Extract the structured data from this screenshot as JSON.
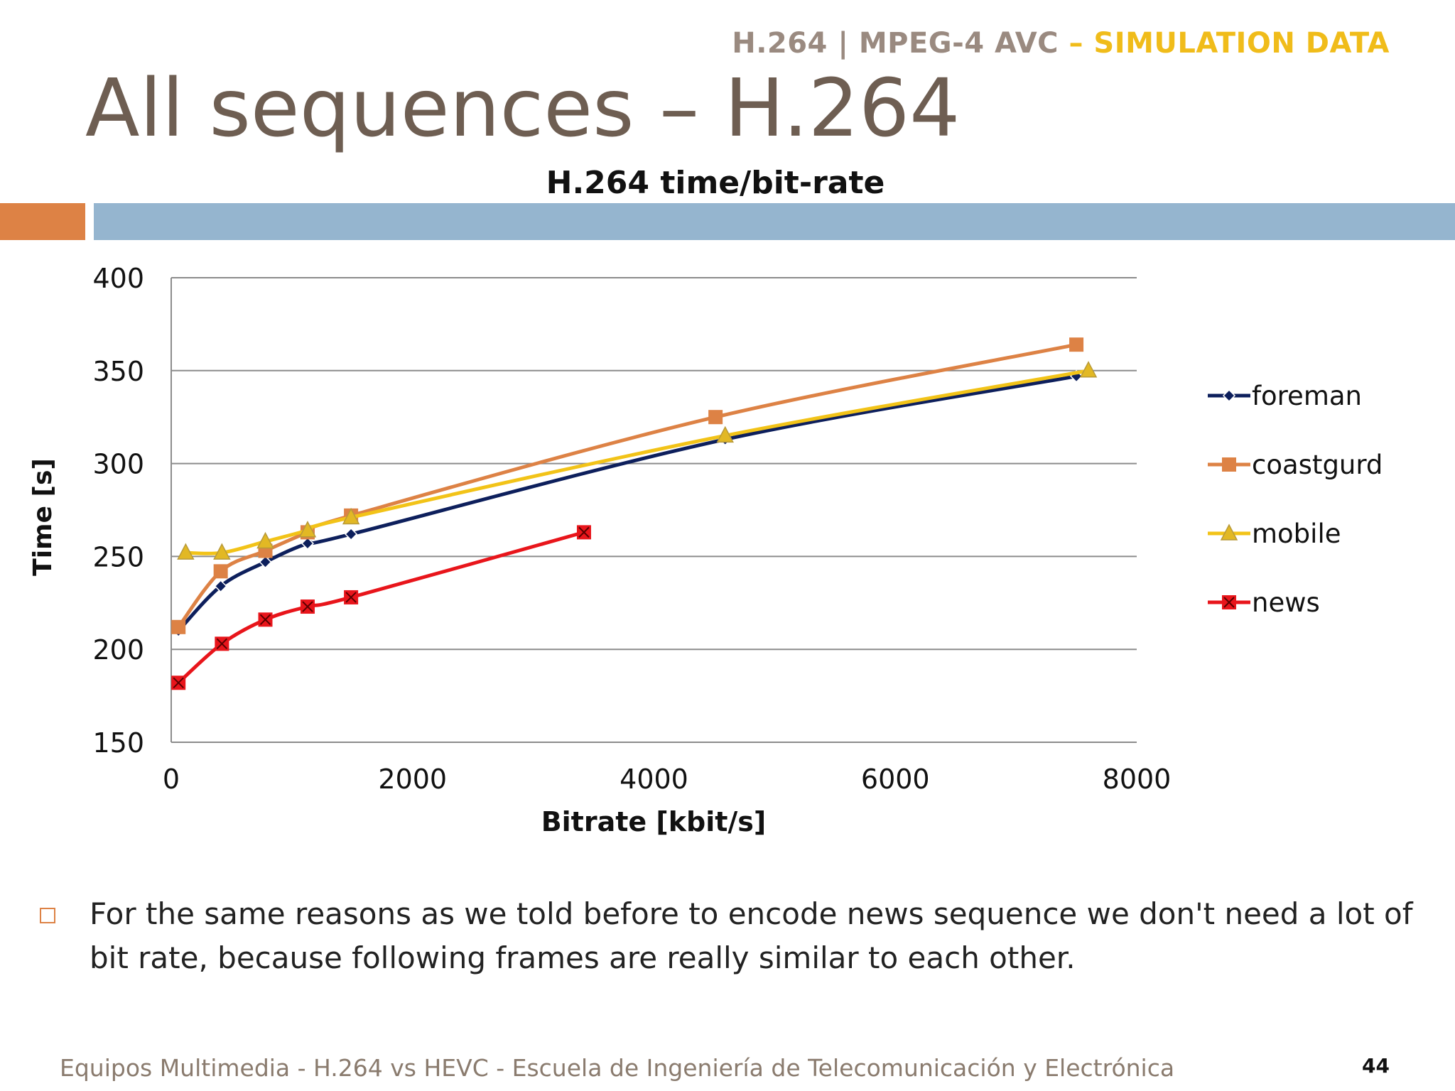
{
  "header": {
    "tag_main": "H.264 | MPEG-4 AVC",
    "tag_accent": "– SIMULATION DATA"
  },
  "slide": {
    "title": "All sequences – H.264"
  },
  "bullet": {
    "text": "For the same reasons as we told before to encode news sequence we don't need a lot of bit rate, because following frames are really similar to each other."
  },
  "footer": {
    "text": "Equipos Multimedia - H.264 vs HEVC - Escuela de Ingeniería de Telecomunicación y Electrónica",
    "page": "44"
  },
  "chart_data": {
    "type": "line",
    "title": "H.264 time/bit-rate",
    "xlabel": "Bitrate [kbit/s]",
    "ylabel": "Time [s]",
    "xlim": [
      0,
      8000
    ],
    "ylim": [
      150,
      400
    ],
    "xticks": [
      0,
      2000,
      4000,
      6000,
      8000
    ],
    "yticks": [
      150,
      200,
      250,
      300,
      350,
      400
    ],
    "grid": "horizontal",
    "legend_position": "right",
    "series": [
      {
        "name": "foreman",
        "color": "#0d1f5c",
        "marker": "diamond",
        "points": [
          [
            60,
            210
          ],
          [
            410,
            234
          ],
          [
            780,
            247
          ],
          [
            1130,
            257
          ],
          [
            1490,
            262
          ],
          [
            4590,
            313
          ],
          [
            7500,
            347
          ]
        ]
      },
      {
        "name": "coastgurd",
        "color": "#dd8245",
        "marker": "square",
        "points": [
          [
            60,
            212
          ],
          [
            410,
            242
          ],
          [
            780,
            253
          ],
          [
            1130,
            263
          ],
          [
            1490,
            272
          ],
          [
            4510,
            325
          ],
          [
            7500,
            364
          ]
        ]
      },
      {
        "name": "mobile",
        "color": "#f2c318",
        "marker": "triangle",
        "points": [
          [
            120,
            252
          ],
          [
            420,
            252
          ],
          [
            780,
            258
          ],
          [
            1130,
            264
          ],
          [
            1490,
            271
          ],
          [
            4590,
            315
          ],
          [
            7600,
            350
          ]
        ]
      },
      {
        "name": "news",
        "color": "#e8151b",
        "marker": "xsquare",
        "points": [
          [
            60,
            182
          ],
          [
            420,
            203
          ],
          [
            780,
            216
          ],
          [
            1130,
            223
          ],
          [
            1490,
            228
          ],
          [
            3420,
            263
          ]
        ]
      }
    ]
  }
}
